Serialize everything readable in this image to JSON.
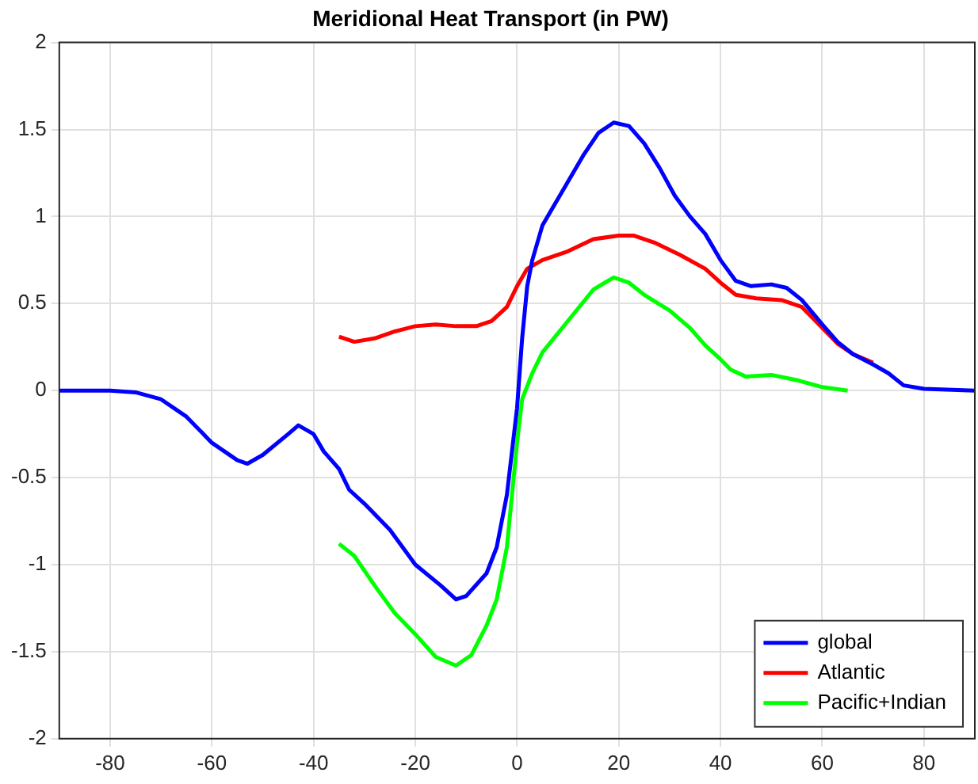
{
  "chart_data": {
    "type": "line",
    "title": "Meridional Heat Transport (in PW)",
    "xlim": [
      -90,
      90
    ],
    "xticks": [
      -80,
      -60,
      -40,
      -20,
      0,
      20,
      40,
      60,
      80
    ],
    "ylim": [
      -2,
      2
    ],
    "yticks": [
      -2,
      -1.5,
      -1,
      -0.5,
      0,
      0.5,
      1,
      1.5,
      2
    ],
    "grid": true,
    "legend": "bottom right",
    "marker": "none",
    "line_style": "solid",
    "series": [
      {
        "name": "global",
        "color": "#0000ff",
        "x": [
          -90,
          -80,
          -75,
          -70,
          -65,
          -60,
          -55,
          -53,
          -50,
          -45,
          -43,
          -40,
          -38,
          -35,
          -33,
          -30,
          -25,
          -20,
          -15,
          -12,
          -10,
          -6,
          -4,
          -2,
          0,
          1,
          2,
          3,
          5,
          8,
          10,
          13,
          16,
          19,
          22,
          25,
          28,
          31,
          34,
          37,
          40,
          43,
          46,
          50,
          53,
          56,
          60,
          63,
          66,
          70,
          73,
          76,
          80,
          90
        ],
        "values": [
          0,
          0,
          -0.01,
          -0.05,
          -0.15,
          -0.3,
          -0.4,
          -0.42,
          -0.37,
          -0.25,
          -0.2,
          -0.25,
          -0.35,
          -0.45,
          -0.57,
          -0.65,
          -0.8,
          -1.0,
          -1.12,
          -1.2,
          -1.18,
          -1.05,
          -0.9,
          -0.6,
          -0.1,
          0.3,
          0.6,
          0.75,
          0.95,
          1.1,
          1.2,
          1.35,
          1.48,
          1.54,
          1.52,
          1.42,
          1.28,
          1.12,
          1.0,
          0.9,
          0.75,
          0.63,
          0.6,
          0.61,
          0.59,
          0.52,
          0.38,
          0.28,
          0.21,
          0.15,
          0.1,
          0.03,
          0.01,
          0
        ]
      },
      {
        "name": "Atlantic",
        "color": "#ff0000",
        "x": [
          -35,
          -32,
          -28,
          -24,
          -20,
          -16,
          -12,
          -8,
          -5,
          -2,
          0,
          2,
          5,
          10,
          15,
          20,
          23,
          27,
          32,
          37,
          40,
          43,
          47,
          52,
          56,
          60,
          63,
          66,
          70
        ],
        "values": [
          0.31,
          0.28,
          0.3,
          0.34,
          0.37,
          0.38,
          0.37,
          0.37,
          0.4,
          0.48,
          0.6,
          0.7,
          0.75,
          0.8,
          0.87,
          0.89,
          0.89,
          0.85,
          0.78,
          0.7,
          0.62,
          0.55,
          0.53,
          0.52,
          0.48,
          0.36,
          0.27,
          0.21,
          0.16
        ]
      },
      {
        "name": "Pacific+Indian",
        "color": "#00ff00",
        "x": [
          -35,
          -32,
          -28,
          -24,
          -20,
          -16,
          -12,
          -9,
          -6,
          -4,
          -2,
          -1,
          0,
          1,
          3,
          5,
          10,
          15,
          19,
          22,
          25,
          30,
          34,
          37,
          40,
          42,
          45,
          50,
          55,
          60,
          65
        ],
        "values": [
          -0.88,
          -0.95,
          -1.12,
          -1.28,
          -1.4,
          -1.53,
          -1.58,
          -1.52,
          -1.35,
          -1.2,
          -0.9,
          -0.6,
          -0.3,
          -0.05,
          0.1,
          0.22,
          0.4,
          0.58,
          0.65,
          0.62,
          0.55,
          0.46,
          0.36,
          0.26,
          0.18,
          0.12,
          0.08,
          0.09,
          0.06,
          0.02,
          0
        ]
      }
    ]
  }
}
